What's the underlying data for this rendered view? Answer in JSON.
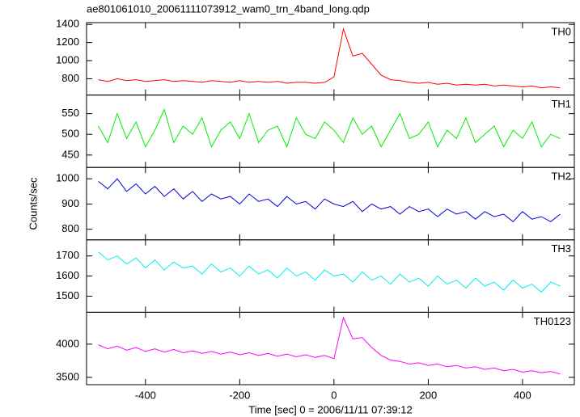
{
  "chart_data": [
    {
      "type": "line",
      "title": "ae801061010_20061111073912_wam0_trn_4band_long.qdp",
      "xlim": [
        -525,
        510
      ],
      "xticks": [
        -400,
        -200,
        0,
        200,
        400
      ],
      "ylim": [
        620,
        1420
      ],
      "yticks": [
        800,
        1000,
        1200,
        1400
      ],
      "x": [
        -500,
        -480,
        -460,
        -440,
        -420,
        -400,
        -380,
        -360,
        -340,
        -320,
        -300,
        -280,
        -260,
        -240,
        -220,
        -200,
        -180,
        -160,
        -140,
        -120,
        -100,
        -80,
        -60,
        -40,
        -20,
        0,
        20,
        40,
        60,
        80,
        100,
        120,
        140,
        160,
        180,
        200,
        220,
        240,
        260,
        280,
        300,
        320,
        340,
        360,
        380,
        400,
        420,
        440,
        460,
        480
      ],
      "series": [
        {
          "name": "TH0",
          "color": "#ff0000",
          "values": [
            790,
            770,
            800,
            780,
            790,
            770,
            780,
            790,
            770,
            780,
            770,
            760,
            780,
            770,
            760,
            780,
            760,
            770,
            760,
            770,
            750,
            760,
            760,
            750,
            760,
            820,
            1350,
            1050,
            1080,
            960,
            840,
            790,
            780,
            760,
            750,
            760,
            740,
            750,
            730,
            740,
            730,
            740,
            720,
            730,
            720,
            710,
            720,
            700,
            710,
            700
          ]
        }
      ]
    },
    {
      "type": "line",
      "xlim": [
        -525,
        510
      ],
      "xticks": [
        -400,
        -200,
        0,
        200,
        400
      ],
      "ylim": [
        420,
        595
      ],
      "yticks": [
        450,
        500,
        550
      ],
      "x": [
        -500,
        -480,
        -460,
        -440,
        -420,
        -400,
        -380,
        -360,
        -340,
        -320,
        -300,
        -280,
        -260,
        -240,
        -220,
        -200,
        -180,
        -160,
        -140,
        -120,
        -100,
        -80,
        -60,
        -40,
        -20,
        0,
        20,
        40,
        60,
        80,
        100,
        120,
        140,
        160,
        180,
        200,
        220,
        240,
        260,
        280,
        300,
        320,
        340,
        360,
        380,
        400,
        420,
        440,
        460,
        480
      ],
      "series": [
        {
          "name": "TH1",
          "color": "#00ee00",
          "values": [
            520,
            480,
            550,
            490,
            530,
            470,
            510,
            560,
            480,
            520,
            500,
            540,
            470,
            510,
            530,
            490,
            550,
            480,
            510,
            520,
            470,
            540,
            500,
            490,
            530,
            510,
            480,
            540,
            500,
            520,
            470,
            510,
            550,
            490,
            500,
            530,
            470,
            510,
            490,
            540,
            480,
            500,
            520,
            470,
            510,
            490,
            530,
            470,
            500,
            490
          ]
        }
      ]
    },
    {
      "type": "line",
      "ylabel": "Counts/sec",
      "xlim": [
        -525,
        510
      ],
      "xticks": [
        -400,
        -200,
        0,
        200,
        400
      ],
      "ylim": [
        758,
        1045
      ],
      "yticks": [
        800,
        900,
        1000
      ],
      "x": [
        -500,
        -480,
        -460,
        -440,
        -420,
        -400,
        -380,
        -360,
        -340,
        -320,
        -300,
        -280,
        -260,
        -240,
        -220,
        -200,
        -180,
        -160,
        -140,
        -120,
        -100,
        -80,
        -60,
        -40,
        -20,
        0,
        20,
        40,
        60,
        80,
        100,
        120,
        140,
        160,
        180,
        200,
        220,
        240,
        260,
        280,
        300,
        320,
        340,
        360,
        380,
        400,
        420,
        440,
        460,
        480
      ],
      "series": [
        {
          "name": "TH2",
          "color": "#0000dd",
          "values": [
            990,
            960,
            1000,
            950,
            980,
            940,
            970,
            930,
            960,
            920,
            950,
            910,
            940,
            920,
            930,
            900,
            940,
            910,
            920,
            890,
            930,
            900,
            910,
            880,
            920,
            900,
            890,
            910,
            870,
            900,
            880,
            890,
            860,
            890,
            870,
            880,
            850,
            880,
            860,
            870,
            840,
            870,
            850,
            860,
            830,
            870,
            840,
            850,
            830,
            860
          ]
        }
      ]
    },
    {
      "type": "line",
      "xlim": [
        -525,
        510
      ],
      "xticks": [
        -400,
        -200,
        0,
        200,
        400
      ],
      "ylim": [
        1420,
        1780
      ],
      "yticks": [
        1500,
        1600,
        1700
      ],
      "x": [
        -500,
        -480,
        -460,
        -440,
        -420,
        -400,
        -380,
        -360,
        -340,
        -320,
        -300,
        -280,
        -260,
        -240,
        -220,
        -200,
        -180,
        -160,
        -140,
        -120,
        -100,
        -80,
        -60,
        -40,
        -20,
        0,
        20,
        40,
        60,
        80,
        100,
        120,
        140,
        160,
        180,
        200,
        220,
        240,
        260,
        280,
        300,
        320,
        340,
        360,
        380,
        400,
        420,
        440,
        460,
        480
      ],
      "series": [
        {
          "name": "TH3",
          "color": "#00eeee",
          "values": [
            1720,
            1680,
            1700,
            1660,
            1690,
            1640,
            1680,
            1630,
            1670,
            1640,
            1650,
            1610,
            1660,
            1620,
            1640,
            1600,
            1650,
            1610,
            1630,
            1590,
            1640,
            1600,
            1620,
            1580,
            1630,
            1600,
            1610,
            1570,
            1620,
            1580,
            1600,
            1560,
            1610,
            1570,
            1590,
            1550,
            1600,
            1560,
            1580,
            1540,
            1590,
            1550,
            1570,
            1530,
            1580,
            1540,
            1560,
            1520,
            1570,
            1550
          ]
        }
      ]
    },
    {
      "type": "line",
      "xlabel": "Time [sec] 0 = 2006/11/11 07:39:12",
      "xlim": [
        -525,
        510
      ],
      "xticks": [
        -400,
        -200,
        0,
        200,
        400
      ],
      "ylim": [
        3390,
        4480
      ],
      "yticks": [
        3500,
        4000
      ],
      "x": [
        -500,
        -480,
        -460,
        -440,
        -420,
        -400,
        -380,
        -360,
        -340,
        -320,
        -300,
        -280,
        -260,
        -240,
        -220,
        -200,
        -180,
        -160,
        -140,
        -120,
        -100,
        -80,
        -60,
        -40,
        -20,
        0,
        20,
        40,
        60,
        80,
        100,
        120,
        140,
        160,
        180,
        200,
        220,
        240,
        260,
        280,
        300,
        320,
        340,
        360,
        380,
        400,
        420,
        440,
        460,
        480
      ],
      "series": [
        {
          "name": "TH0123",
          "color": "#ff00ff",
          "values": [
            3990,
            3930,
            3970,
            3910,
            3950,
            3890,
            3930,
            3880,
            3920,
            3870,
            3900,
            3860,
            3890,
            3850,
            3880,
            3840,
            3870,
            3830,
            3860,
            3820,
            3850,
            3810,
            3840,
            3800,
            3830,
            3780,
            4400,
            4080,
            4100,
            3950,
            3830,
            3760,
            3740,
            3700,
            3720,
            3680,
            3700,
            3660,
            3680,
            3640,
            3660,
            3620,
            3640,
            3600,
            3620,
            3580,
            3600,
            3570,
            3590,
            3550
          ]
        }
      ]
    }
  ]
}
